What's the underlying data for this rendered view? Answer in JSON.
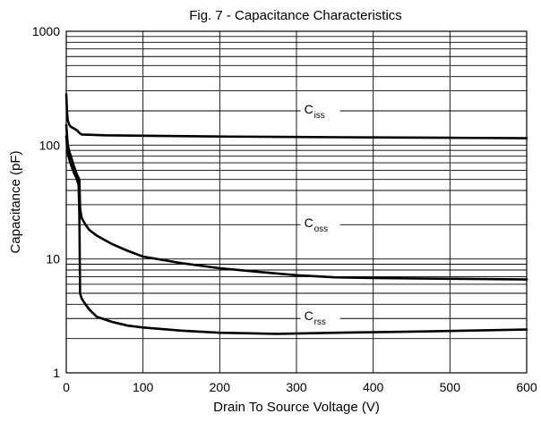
{
  "chart_data": {
    "type": "line",
    "title": "Fig. 7 - Capacitance Characteristics",
    "xlabel": "Drain To Source Voltage (V)",
    "ylabel": "Capacitance (pF)",
    "xlim": [
      0,
      600
    ],
    "ylim": [
      1,
      1000
    ],
    "yscale": "log",
    "grid": true,
    "x_ticks": [
      "0",
      "100",
      "200",
      "300",
      "400",
      "500",
      "600"
    ],
    "y_ticks": [
      "1",
      "10",
      "100",
      "1000"
    ],
    "series": [
      {
        "name": "C",
        "subscript": "iss",
        "x": [
          0,
          1,
          2,
          4,
          6,
          10,
          14,
          17,
          20,
          50,
          100,
          200,
          300,
          400,
          500,
          600
        ],
        "y": [
          280,
          190,
          165,
          150,
          145,
          140,
          135,
          128,
          124,
          122,
          121,
          119,
          118,
          117,
          116,
          115
        ]
      },
      {
        "name": "C",
        "subscript": "oss",
        "x": [
          0,
          1,
          2,
          4,
          6,
          8,
          10,
          14,
          17,
          18,
          20,
          25,
          30,
          40,
          60,
          80,
          100,
          150,
          200,
          250,
          300,
          350,
          400,
          500,
          600
        ],
        "y": [
          150,
          120,
          100,
          88,
          80,
          72,
          65,
          55,
          50,
          28,
          23,
          20,
          18,
          16,
          13.5,
          11.8,
          10.5,
          9.2,
          8.3,
          7.7,
          7.2,
          6.9,
          6.8,
          6.7,
          6.6
        ]
      },
      {
        "name": "C",
        "subscript": "rss",
        "x": [
          0,
          2,
          4,
          6,
          8,
          10,
          13,
          16,
          17,
          18,
          20,
          25,
          30,
          40,
          60,
          80,
          100,
          150,
          200,
          275,
          350,
          450,
          600
        ],
        "y": [
          120,
          85,
          75,
          68,
          62,
          57,
          52,
          45,
          25,
          5,
          4.5,
          4.0,
          3.6,
          3.1,
          2.8,
          2.6,
          2.5,
          2.35,
          2.25,
          2.2,
          2.25,
          2.3,
          2.4
        ]
      }
    ],
    "annotations": [
      {
        "series": 0,
        "x": 310,
        "y": 190
      },
      {
        "series": 1,
        "x": 310,
        "y": 19
      },
      {
        "series": 2,
        "x": 310,
        "y": 2.9
      }
    ]
  }
}
